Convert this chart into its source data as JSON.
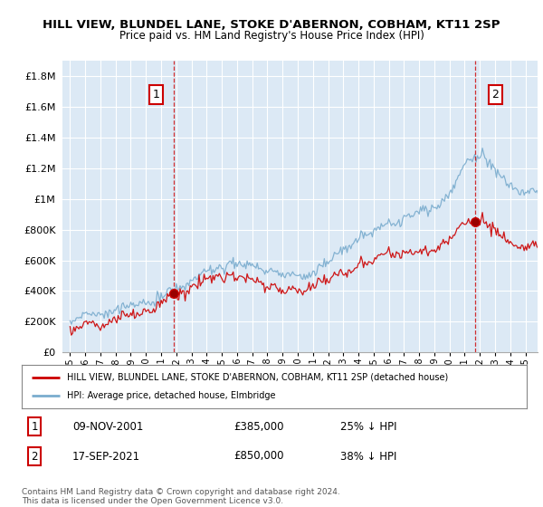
{
  "title": "HILL VIEW, BLUNDEL LANE, STOKE D'ABERNON, COBHAM, KT11 2SP",
  "subtitle": "Price paid vs. HM Land Registry's House Price Index (HPI)",
  "legend_red": "HILL VIEW, BLUNDEL LANE, STOKE D'ABERNON, COBHAM, KT11 2SP (detached house)",
  "legend_blue": "HPI: Average price, detached house, Elmbridge",
  "annotation1_label": "1",
  "annotation1_date": "09-NOV-2001",
  "annotation1_price": "£385,000",
  "annotation1_hpi": "25% ↓ HPI",
  "annotation2_label": "2",
  "annotation2_date": "17-SEP-2021",
  "annotation2_price": "£850,000",
  "annotation2_hpi": "38% ↓ HPI",
  "footer": "Contains HM Land Registry data © Crown copyright and database right 2024.\nThis data is licensed under the Open Government Licence v3.0.",
  "ylim": [
    0,
    1900000
  ],
  "yticks": [
    0,
    200000,
    400000,
    600000,
    800000,
    1000000,
    1200000,
    1400000,
    1600000,
    1800000
  ],
  "year_start": 1995,
  "year_end": 2025,
  "sale1_year": 2001.86,
  "sale1_price": 385000,
  "sale2_year": 2021.71,
  "sale2_price": 850000,
  "red_color": "#cc0000",
  "blue_color": "#7aacce",
  "vline_color": "#cc0000",
  "background_color": "#ffffff",
  "plot_bg_color": "#dce9f5",
  "grid_color": "#ffffff"
}
